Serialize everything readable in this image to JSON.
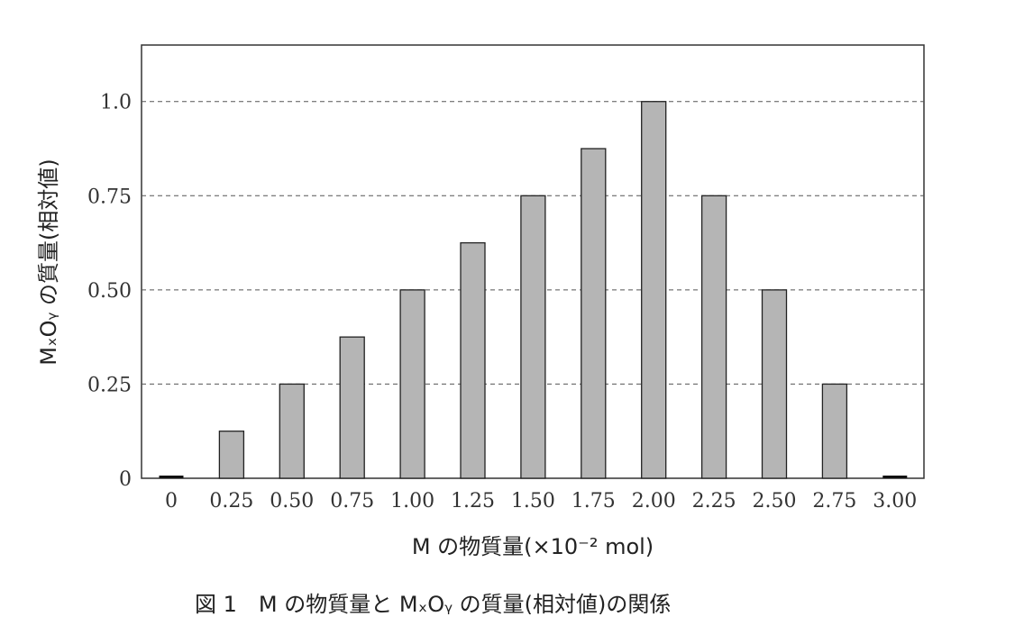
{
  "chart_data": {
    "type": "bar",
    "categories": [
      "0",
      "0.25",
      "0.50",
      "0.75",
      "1.00",
      "1.25",
      "1.50",
      "1.75",
      "2.00",
      "2.25",
      "2.50",
      "2.75",
      "3.00"
    ],
    "values": [
      0,
      0.125,
      0.25,
      0.375,
      0.5,
      0.625,
      0.75,
      0.875,
      1.0,
      0.75,
      0.5,
      0.25,
      0
    ],
    "xlabel": "M の物質量(×10⁻² mol)",
    "ylabel": "MₓOᵧ の質量(相対値)",
    "ylim": [
      0,
      1.15
    ],
    "yticks": [
      0,
      0.25,
      0.5,
      0.75,
      1.0
    ],
    "ytick_labels": [
      "0",
      "0.25",
      "0.50",
      "0.75",
      "1.0"
    ],
    "grid": "horizontal-dashed",
    "bar_color": "#b5b5b5",
    "bar_edge_color": "#222222"
  },
  "caption": "図 1　M の物質量と MₓOᵧ の質量(相対値)の関係"
}
